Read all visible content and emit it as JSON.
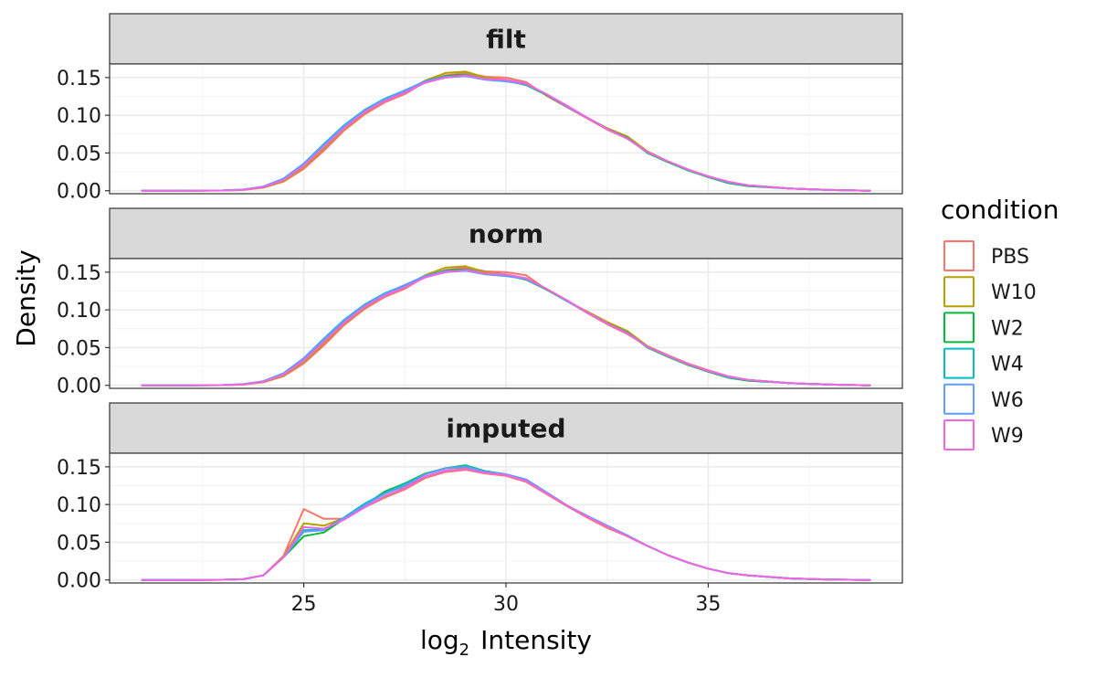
{
  "chart_data": {
    "type": "line",
    "subtype": "density",
    "xlabel": {
      "prefix": "log",
      "subscript": "2",
      "suffix": "Intensity"
    },
    "ylabel": "Density",
    "xlim": [
      20.2,
      39.8
    ],
    "ylim": [
      -0.004,
      0.168
    ],
    "x_ticks": [
      25,
      30,
      35
    ],
    "y_ticks": [
      0.0,
      0.05,
      0.1,
      0.15
    ],
    "y_tick_labels": [
      "0.00",
      "0.05",
      "0.10",
      "0.15"
    ],
    "x_grid": [
      22.5,
      25,
      27.5,
      30,
      32.5,
      35,
      37.5
    ],
    "y_grid": [
      0.0,
      0.025,
      0.05,
      0.075,
      0.1,
      0.125,
      0.15
    ],
    "legend": {
      "title": "condition",
      "position": "right",
      "entries": [
        {
          "name": "PBS",
          "color": "#F8766D"
        },
        {
          "name": "W10",
          "color": "#B79F00"
        },
        {
          "name": "W2",
          "color": "#00BA38"
        },
        {
          "name": "W4",
          "color": "#00BFC4"
        },
        {
          "name": "W6",
          "color": "#619CFF"
        },
        {
          "name": "W9",
          "color": "#F564E3"
        }
      ]
    },
    "x": [
      21,
      22,
      23,
      23.5,
      24,
      24.5,
      25,
      25.5,
      26,
      26.5,
      27,
      27.5,
      28,
      28.5,
      29,
      29.5,
      30,
      30.5,
      31,
      31.5,
      32,
      32.5,
      33,
      33.5,
      34,
      34.5,
      35,
      35.5,
      36,
      37,
      38,
      39
    ],
    "panels": [
      {
        "label": "filt",
        "series": [
          {
            "name": "PBS",
            "values": [
              0,
              0,
              0.0002,
              0.001,
              0.004,
              0.012,
              0.029,
              0.053,
              0.08,
              0.101,
              0.117,
              0.128,
              0.144,
              0.153,
              0.156,
              0.151,
              0.15,
              0.144,
              0.126,
              0.111,
              0.096,
              0.081,
              0.069,
              0.052,
              0.039,
              0.028,
              0.018,
              0.011,
              0.007,
              0.003,
              0.001,
              0
            ]
          },
          {
            "name": "W10",
            "values": [
              0,
              0,
              0.0002,
              0.001,
              0.0045,
              0.013,
              0.031,
              0.056,
              0.082,
              0.103,
              0.119,
              0.131,
              0.146,
              0.156,
              0.158,
              0.15,
              0.147,
              0.142,
              0.127,
              0.112,
              0.097,
              0.083,
              0.072,
              0.052,
              0.039,
              0.028,
              0.019,
              0.011,
              0.007,
              0.003,
              0.001,
              0
            ]
          },
          {
            "name": "W2",
            "values": [
              0,
              0,
              0.0003,
              0.0015,
              0.005,
              0.015,
              0.034,
              0.06,
              0.085,
              0.106,
              0.121,
              0.133,
              0.145,
              0.152,
              0.154,
              0.148,
              0.146,
              0.14,
              0.127,
              0.112,
              0.097,
              0.082,
              0.07,
              0.05,
              0.038,
              0.027,
              0.018,
              0.01,
              0.006,
              0.003,
              0.001,
              0
            ]
          },
          {
            "name": "W4",
            "values": [
              0,
              0,
              0.0003,
              0.0015,
              0.0055,
              0.016,
              0.036,
              0.062,
              0.087,
              0.107,
              0.122,
              0.133,
              0.144,
              0.15,
              0.152,
              0.147,
              0.145,
              0.141,
              0.128,
              0.112,
              0.097,
              0.082,
              0.069,
              0.051,
              0.039,
              0.028,
              0.019,
              0.011,
              0.007,
              0.003,
              0.001,
              0
            ]
          },
          {
            "name": "W6",
            "values": [
              0,
              0,
              0.0003,
              0.0015,
              0.0055,
              0.016,
              0.036,
              0.061,
              0.086,
              0.106,
              0.121,
              0.133,
              0.145,
              0.151,
              0.152,
              0.147,
              0.145,
              0.141,
              0.128,
              0.112,
              0.097,
              0.082,
              0.069,
              0.051,
              0.039,
              0.028,
              0.019,
              0.011,
              0.007,
              0.003,
              0.001,
              0
            ]
          },
          {
            "name": "W9",
            "values": [
              0,
              0,
              0.0002,
              0.0012,
              0.0048,
              0.014,
              0.033,
              0.058,
              0.083,
              0.104,
              0.119,
              0.13,
              0.143,
              0.15,
              0.153,
              0.148,
              0.147,
              0.142,
              0.128,
              0.113,
              0.097,
              0.082,
              0.069,
              0.051,
              0.039,
              0.028,
              0.019,
              0.012,
              0.007,
              0.003,
              0.001,
              0
            ]
          }
        ]
      },
      {
        "label": "norm",
        "series": [
          {
            "name": "PBS",
            "values": [
              0,
              0,
              0.0002,
              0.001,
              0.004,
              0.012,
              0.029,
              0.053,
              0.08,
              0.101,
              0.117,
              0.128,
              0.144,
              0.153,
              0.156,
              0.151,
              0.15,
              0.146,
              0.127,
              0.112,
              0.096,
              0.081,
              0.068,
              0.052,
              0.04,
              0.029,
              0.02,
              0.012,
              0.007,
              0.003,
              0.001,
              0
            ]
          },
          {
            "name": "W10",
            "values": [
              0,
              0,
              0.0002,
              0.001,
              0.0045,
              0.013,
              0.031,
              0.056,
              0.082,
              0.103,
              0.119,
              0.131,
              0.146,
              0.156,
              0.158,
              0.15,
              0.147,
              0.142,
              0.127,
              0.112,
              0.098,
              0.084,
              0.072,
              0.052,
              0.039,
              0.028,
              0.019,
              0.011,
              0.007,
              0.003,
              0.001,
              0
            ]
          },
          {
            "name": "W2",
            "values": [
              0,
              0,
              0.0003,
              0.0015,
              0.005,
              0.015,
              0.034,
              0.06,
              0.085,
              0.106,
              0.121,
              0.133,
              0.145,
              0.152,
              0.154,
              0.148,
              0.146,
              0.14,
              0.127,
              0.112,
              0.097,
              0.082,
              0.07,
              0.05,
              0.038,
              0.027,
              0.018,
              0.01,
              0.006,
              0.003,
              0.001,
              0
            ]
          },
          {
            "name": "W4",
            "values": [
              0,
              0,
              0.0003,
              0.0015,
              0.0055,
              0.016,
              0.036,
              0.062,
              0.087,
              0.107,
              0.122,
              0.133,
              0.144,
              0.15,
              0.152,
              0.147,
              0.145,
              0.141,
              0.128,
              0.112,
              0.097,
              0.082,
              0.069,
              0.051,
              0.039,
              0.028,
              0.019,
              0.011,
              0.007,
              0.003,
              0.001,
              0
            ]
          },
          {
            "name": "W6",
            "values": [
              0,
              0,
              0.0003,
              0.0015,
              0.0055,
              0.016,
              0.036,
              0.061,
              0.086,
              0.106,
              0.121,
              0.133,
              0.145,
              0.151,
              0.152,
              0.147,
              0.145,
              0.141,
              0.128,
              0.112,
              0.097,
              0.082,
              0.069,
              0.051,
              0.039,
              0.028,
              0.019,
              0.011,
              0.007,
              0.003,
              0.001,
              0
            ]
          },
          {
            "name": "W9",
            "values": [
              0,
              0,
              0.0002,
              0.0012,
              0.0048,
              0.014,
              0.033,
              0.058,
              0.083,
              0.104,
              0.119,
              0.13,
              0.143,
              0.15,
              0.153,
              0.148,
              0.147,
              0.142,
              0.128,
              0.113,
              0.097,
              0.082,
              0.069,
              0.051,
              0.039,
              0.028,
              0.019,
              0.012,
              0.007,
              0.003,
              0.001,
              0
            ]
          }
        ]
      },
      {
        "label": "imputed",
        "series": [
          {
            "name": "PBS",
            "values": [
              0,
              0,
              0.0002,
              0.001,
              0.006,
              0.032,
              0.094,
              0.081,
              0.081,
              0.096,
              0.109,
              0.12,
              0.135,
              0.143,
              0.146,
              0.141,
              0.138,
              0.13,
              0.114,
              0.098,
              0.083,
              0.069,
              0.058,
              0.045,
              0.033,
              0.023,
              0.015,
              0.009,
              0.006,
              0.002,
              0.0005,
              0
            ]
          },
          {
            "name": "W10",
            "values": [
              0,
              0,
              0.0002,
              0.001,
              0.006,
              0.031,
              0.075,
              0.072,
              0.082,
              0.097,
              0.11,
              0.123,
              0.14,
              0.148,
              0.149,
              0.142,
              0.139,
              0.132,
              0.115,
              0.099,
              0.085,
              0.072,
              0.059,
              0.045,
              0.033,
              0.023,
              0.015,
              0.009,
              0.006,
              0.002,
              0.0005,
              0
            ]
          },
          {
            "name": "W2",
            "values": [
              0,
              0,
              0.0002,
              0.001,
              0.006,
              0.03,
              0.058,
              0.063,
              0.081,
              0.099,
              0.117,
              0.128,
              0.141,
              0.148,
              0.152,
              0.144,
              0.14,
              0.133,
              0.116,
              0.099,
              0.084,
              0.071,
              0.058,
              0.045,
              0.033,
              0.023,
              0.015,
              0.009,
              0.006,
              0.002,
              0.0005,
              0
            ]
          },
          {
            "name": "W4",
            "values": [
              0,
              0,
              0.0002,
              0.001,
              0.006,
              0.03,
              0.066,
              0.067,
              0.083,
              0.101,
              0.115,
              0.127,
              0.14,
              0.148,
              0.151,
              0.144,
              0.14,
              0.133,
              0.116,
              0.099,
              0.085,
              0.072,
              0.059,
              0.045,
              0.033,
              0.023,
              0.015,
              0.009,
              0.006,
              0.002,
              0.0005,
              0
            ]
          },
          {
            "name": "W6",
            "values": [
              0,
              0,
              0.0002,
              0.001,
              0.006,
              0.03,
              0.064,
              0.066,
              0.082,
              0.099,
              0.114,
              0.125,
              0.14,
              0.148,
              0.15,
              0.143,
              0.14,
              0.133,
              0.116,
              0.099,
              0.085,
              0.072,
              0.059,
              0.045,
              0.033,
              0.023,
              0.015,
              0.009,
              0.006,
              0.002,
              0.0005,
              0
            ]
          },
          {
            "name": "W9",
            "values": [
              0,
              0,
              0.0002,
              0.001,
              0.006,
              0.03,
              0.07,
              0.068,
              0.08,
              0.096,
              0.111,
              0.122,
              0.137,
              0.145,
              0.147,
              0.142,
              0.139,
              0.131,
              0.115,
              0.099,
              0.084,
              0.071,
              0.058,
              0.045,
              0.033,
              0.023,
              0.015,
              0.009,
              0.006,
              0.002,
              0.0005,
              0
            ]
          }
        ]
      }
    ]
  }
}
